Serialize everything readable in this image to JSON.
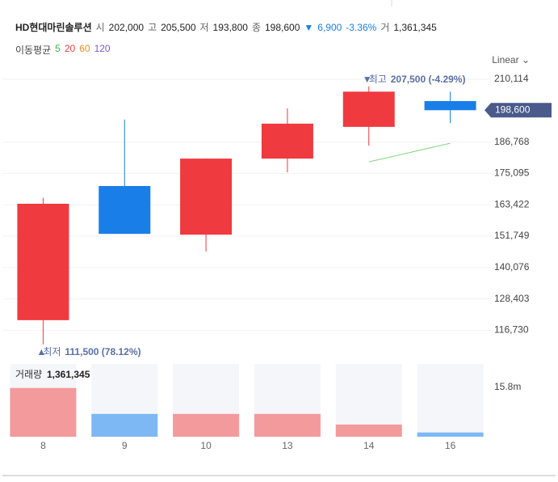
{
  "header": {
    "title": "HD현대마린솔루션",
    "items": [
      {
        "label": "시",
        "value": "202,000"
      },
      {
        "label": "고",
        "value": "205,500"
      },
      {
        "label": "저",
        "value": "193,800"
      },
      {
        "label": "종",
        "value": "198,600"
      }
    ],
    "change": {
      "arrow": "▼",
      "value": "6,900",
      "percent": "-3.36%"
    },
    "volume": {
      "label": "거",
      "value": "1,361,345"
    },
    "ma_title": "이동평균",
    "ma_legend": [
      {
        "label": "5",
        "color": "#3cb44b"
      },
      {
        "label": "20",
        "color": "#e8423f"
      },
      {
        "label": "60",
        "color": "#f28c28"
      },
      {
        "label": "120",
        "color": "#7a5bd0"
      }
    ],
    "scale_mode": "Linear"
  },
  "chart_data": {
    "type": "candlestick",
    "categories": [
      "8",
      "9",
      "10",
      "13",
      "14",
      "16"
    ],
    "open": [
      120500,
      170400,
      152300,
      180600,
      192400,
      202000
    ],
    "high": [
      166000,
      195100,
      180600,
      199300,
      207500,
      205500
    ],
    "low": [
      111500,
      152600,
      146000,
      175500,
      185400,
      193800
    ],
    "close": [
      163800,
      152600,
      180600,
      193600,
      205500,
      198600
    ],
    "up_color": "#ef3a3f",
    "down_color": "#1a7ee8",
    "ylim": [
      107226,
      211919
    ],
    "yticks": [
      {
        "value": 210114,
        "label": "210,114"
      },
      {
        "value": 186768,
        "label": "186,768"
      },
      {
        "value": 175095,
        "label": "175,095"
      },
      {
        "value": 163422,
        "label": "163,422"
      },
      {
        "value": 151749,
        "label": "151,749"
      },
      {
        "value": 140076,
        "label": "140,076"
      },
      {
        "value": 128403,
        "label": "128,403"
      },
      {
        "value": 116730,
        "label": "116,730"
      }
    ],
    "grid": true,
    "ma": {
      "name": "5",
      "color": "#7fd67f",
      "values": [
        null,
        null,
        null,
        null,
        179400,
        186300
      ]
    },
    "current_price": {
      "value": 198600,
      "label": "198,600"
    },
    "high_mark": {
      "name": "최고",
      "value": 207500,
      "label": "207,500 (-4.29%)"
    },
    "low_mark": {
      "name": "최저",
      "value": 111500,
      "label": "111,500 (78.12%)"
    },
    "volume": {
      "title": "거래량",
      "title_value": "1,361,345",
      "values": [
        15600000,
        7300000,
        7300000,
        7300000,
        3900000,
        1361345
      ],
      "up_color": "#f39a9c",
      "down_color": "#7db8f4",
      "ylim": [
        0,
        23300000
      ],
      "yticks": [
        {
          "value": 15800000,
          "label": "15.8m"
        }
      ]
    }
  }
}
